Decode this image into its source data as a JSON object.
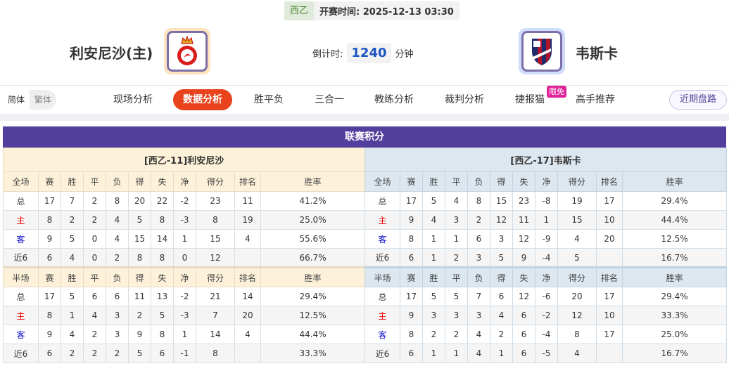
{
  "header": {
    "league": "西乙",
    "kickoff_label": "开赛时间:",
    "kickoff": "2025-12-13 03:30",
    "home": "利安尼沙(主)",
    "away": "韦斯卡",
    "countdown_label": "倒计时:",
    "countdown": "1240",
    "countdown_unit": "分钟"
  },
  "colors": {
    "accent": "#e8431c",
    "title_bar": "#523f9d",
    "home_bg": "#fdf1d9",
    "away_bg": "#dce7ef"
  },
  "lang": {
    "simplified": "简体",
    "traditional": "繁体"
  },
  "nav": {
    "items": [
      "现场分析",
      "数据分析",
      "胜平负",
      "三合一",
      "教练分析",
      "裁判分析",
      "捷报猫",
      "高手推荐"
    ],
    "active": "数据分析",
    "free_badge": "限免",
    "recent": "近期盘路"
  },
  "standings": {
    "title": "联赛积分",
    "columns": [
      "赛",
      "胜",
      "平",
      "负",
      "得",
      "失",
      "净",
      "得分",
      "排名",
      "胜率"
    ],
    "full_label": "全场",
    "half_label": "半场",
    "home": {
      "caption": "[西乙-11]利安尼沙",
      "full": [
        [
          "总",
          "17",
          "7",
          "2",
          "8",
          "20",
          "22",
          "-2",
          "23",
          "11",
          "41.2%"
        ],
        [
          "主",
          "8",
          "2",
          "2",
          "4",
          "5",
          "8",
          "-3",
          "8",
          "19",
          "25.0%"
        ],
        [
          "客",
          "9",
          "5",
          "0",
          "4",
          "15",
          "14",
          "1",
          "15",
          "4",
          "55.6%"
        ],
        [
          "近6",
          "6",
          "4",
          "0",
          "2",
          "8",
          "8",
          "0",
          "12",
          "",
          "66.7%"
        ]
      ],
      "half": [
        [
          "总",
          "17",
          "5",
          "6",
          "6",
          "11",
          "13",
          "-2",
          "21",
          "14",
          "29.4%"
        ],
        [
          "主",
          "8",
          "1",
          "4",
          "3",
          "2",
          "5",
          "-3",
          "7",
          "20",
          "12.5%"
        ],
        [
          "客",
          "9",
          "4",
          "2",
          "3",
          "9",
          "8",
          "1",
          "14",
          "4",
          "44.4%"
        ],
        [
          "近6",
          "6",
          "2",
          "2",
          "2",
          "5",
          "6",
          "-1",
          "8",
          "",
          "33.3%"
        ]
      ]
    },
    "away": {
      "caption": "[西乙-17]韦斯卡",
      "full": [
        [
          "总",
          "17",
          "5",
          "4",
          "8",
          "15",
          "23",
          "-8",
          "19",
          "17",
          "29.4%"
        ],
        [
          "主",
          "9",
          "4",
          "3",
          "2",
          "12",
          "11",
          "1",
          "15",
          "10",
          "44.4%"
        ],
        [
          "客",
          "8",
          "1",
          "1",
          "6",
          "3",
          "12",
          "-9",
          "4",
          "20",
          "12.5%"
        ],
        [
          "近6",
          "6",
          "1",
          "2",
          "3",
          "5",
          "9",
          "-4",
          "5",
          "",
          "16.7%"
        ]
      ],
      "half": [
        [
          "总",
          "17",
          "5",
          "5",
          "7",
          "6",
          "12",
          "-6",
          "20",
          "17",
          "29.4%"
        ],
        [
          "主",
          "9",
          "3",
          "3",
          "3",
          "4",
          "6",
          "-2",
          "12",
          "10",
          "33.3%"
        ],
        [
          "客",
          "8",
          "2",
          "2",
          "4",
          "2",
          "6",
          "-4",
          "8",
          "17",
          "25.0%"
        ],
        [
          "近6",
          "6",
          "1",
          "1",
          "4",
          "1",
          "6",
          "-5",
          "4",
          "",
          "16.7%"
        ]
      ]
    }
  }
}
